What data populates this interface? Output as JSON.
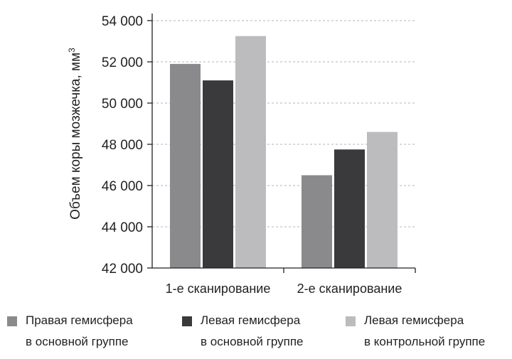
{
  "chart_data": {
    "type": "bar",
    "title": "",
    "xlabel": "",
    "ylabel": "Объем коры мозжечка, мм",
    "ylabel_superscript": "3",
    "ylim": [
      42000,
      54000
    ],
    "yticks": [
      42000,
      44000,
      46000,
      48000,
      50000,
      52000,
      54000
    ],
    "ytick_labels": [
      "42 000",
      "44 000",
      "46 000",
      "48 000",
      "50 000",
      "52 000",
      "54 000"
    ],
    "categories": [
      "1-е сканирование",
      "2-е сканирование"
    ],
    "grid": "horizontal dashed",
    "legend_position": "bottom",
    "series": [
      {
        "name_line1": "Правая гемисфера",
        "name_line2": "в основной группе",
        "color": "#8a8a8c",
        "values": [
          51900,
          46500
        ]
      },
      {
        "name_line1": "Левая гемисфера",
        "name_line2": "в основной группе",
        "color": "#3a3a3c",
        "values": [
          51100,
          47750
        ]
      },
      {
        "name_line1": "Левая гемисфера",
        "name_line2": "в контрольной группе",
        "color": "#bcbcbe",
        "values": [
          53250,
          48600
        ]
      }
    ]
  }
}
